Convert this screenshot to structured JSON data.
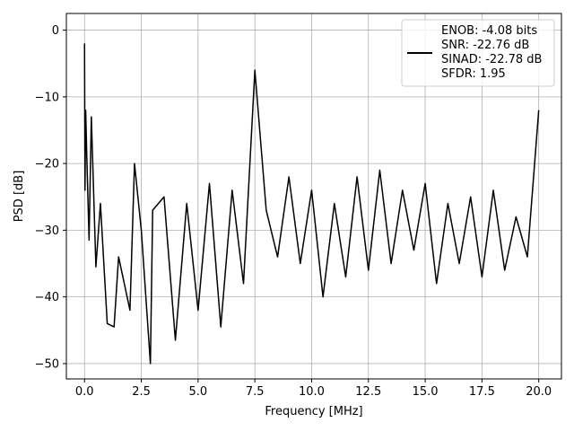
{
  "chart_data": {
    "type": "line",
    "title": "",
    "xlabel": "Frequency [MHz]",
    "ylabel": "PSD [dB]",
    "xlim": [
      -0.8,
      21.0
    ],
    "ylim": [
      -52.3,
      2.5
    ],
    "xticks": [
      0.0,
      2.5,
      5.0,
      7.5,
      10.0,
      12.5,
      15.0,
      17.5,
      20.0
    ],
    "xtick_labels": [
      "0.0",
      "2.5",
      "5.0",
      "7.5",
      "10.0",
      "12.5",
      "15.0",
      "17.5",
      "20.0"
    ],
    "yticks": [
      0,
      -10,
      -20,
      -30,
      -40,
      -50
    ],
    "ytick_labels": [
      "0",
      "−10",
      "−20",
      "−30",
      "−40",
      "−50"
    ],
    "grid": true,
    "legend_position": "top-right",
    "legend_lines": [
      "ENOB: -4.08 bits",
      "SNR: -22.76 dB",
      "SINAD: -22.78 dB",
      "SFDR: 1.95"
    ],
    "series_color": "#000000",
    "series": [
      {
        "x": [
          0.0,
          0.02,
          0.05,
          0.1,
          0.2,
          0.3,
          0.5,
          0.7,
          1.0,
          1.3,
          1.5,
          2.0,
          2.2,
          2.5,
          2.9,
          3.0,
          3.5,
          4.0,
          4.5,
          5.0,
          5.5,
          6.0,
          6.5,
          7.0,
          7.5,
          8.0,
          8.5,
          9.0,
          9.5,
          10.0,
          10.5,
          11.0,
          11.5,
          12.0,
          12.5,
          13.0,
          13.5,
          14.0,
          14.5,
          15.0,
          15.5,
          16.0,
          16.5,
          17.0,
          17.5,
          18.0,
          18.5,
          19.0,
          19.5,
          20.0
        ],
        "y": [
          -2.0,
          -24.0,
          -12.0,
          -19.0,
          -31.5,
          -13.0,
          -35.5,
          -26.0,
          -44.0,
          -44.5,
          -34.0,
          -42.0,
          -20.0,
          -30.0,
          -50.0,
          -27.0,
          -25.0,
          -46.5,
          -26.0,
          -42.0,
          -23.0,
          -44.5,
          -24.0,
          -38.0,
          -6.0,
          -27.0,
          -34.0,
          -22.0,
          -35.0,
          -24.0,
          -40.0,
          -26.0,
          -37.0,
          -22.0,
          -36.0,
          -21.0,
          -35.0,
          -24.0,
          -33.0,
          -23.0,
          -38.0,
          -26.0,
          -35.0,
          -25.0,
          -37.0,
          -24.0,
          -36.0,
          -28.0,
          -34.0,
          -12.0
        ]
      }
    ]
  }
}
